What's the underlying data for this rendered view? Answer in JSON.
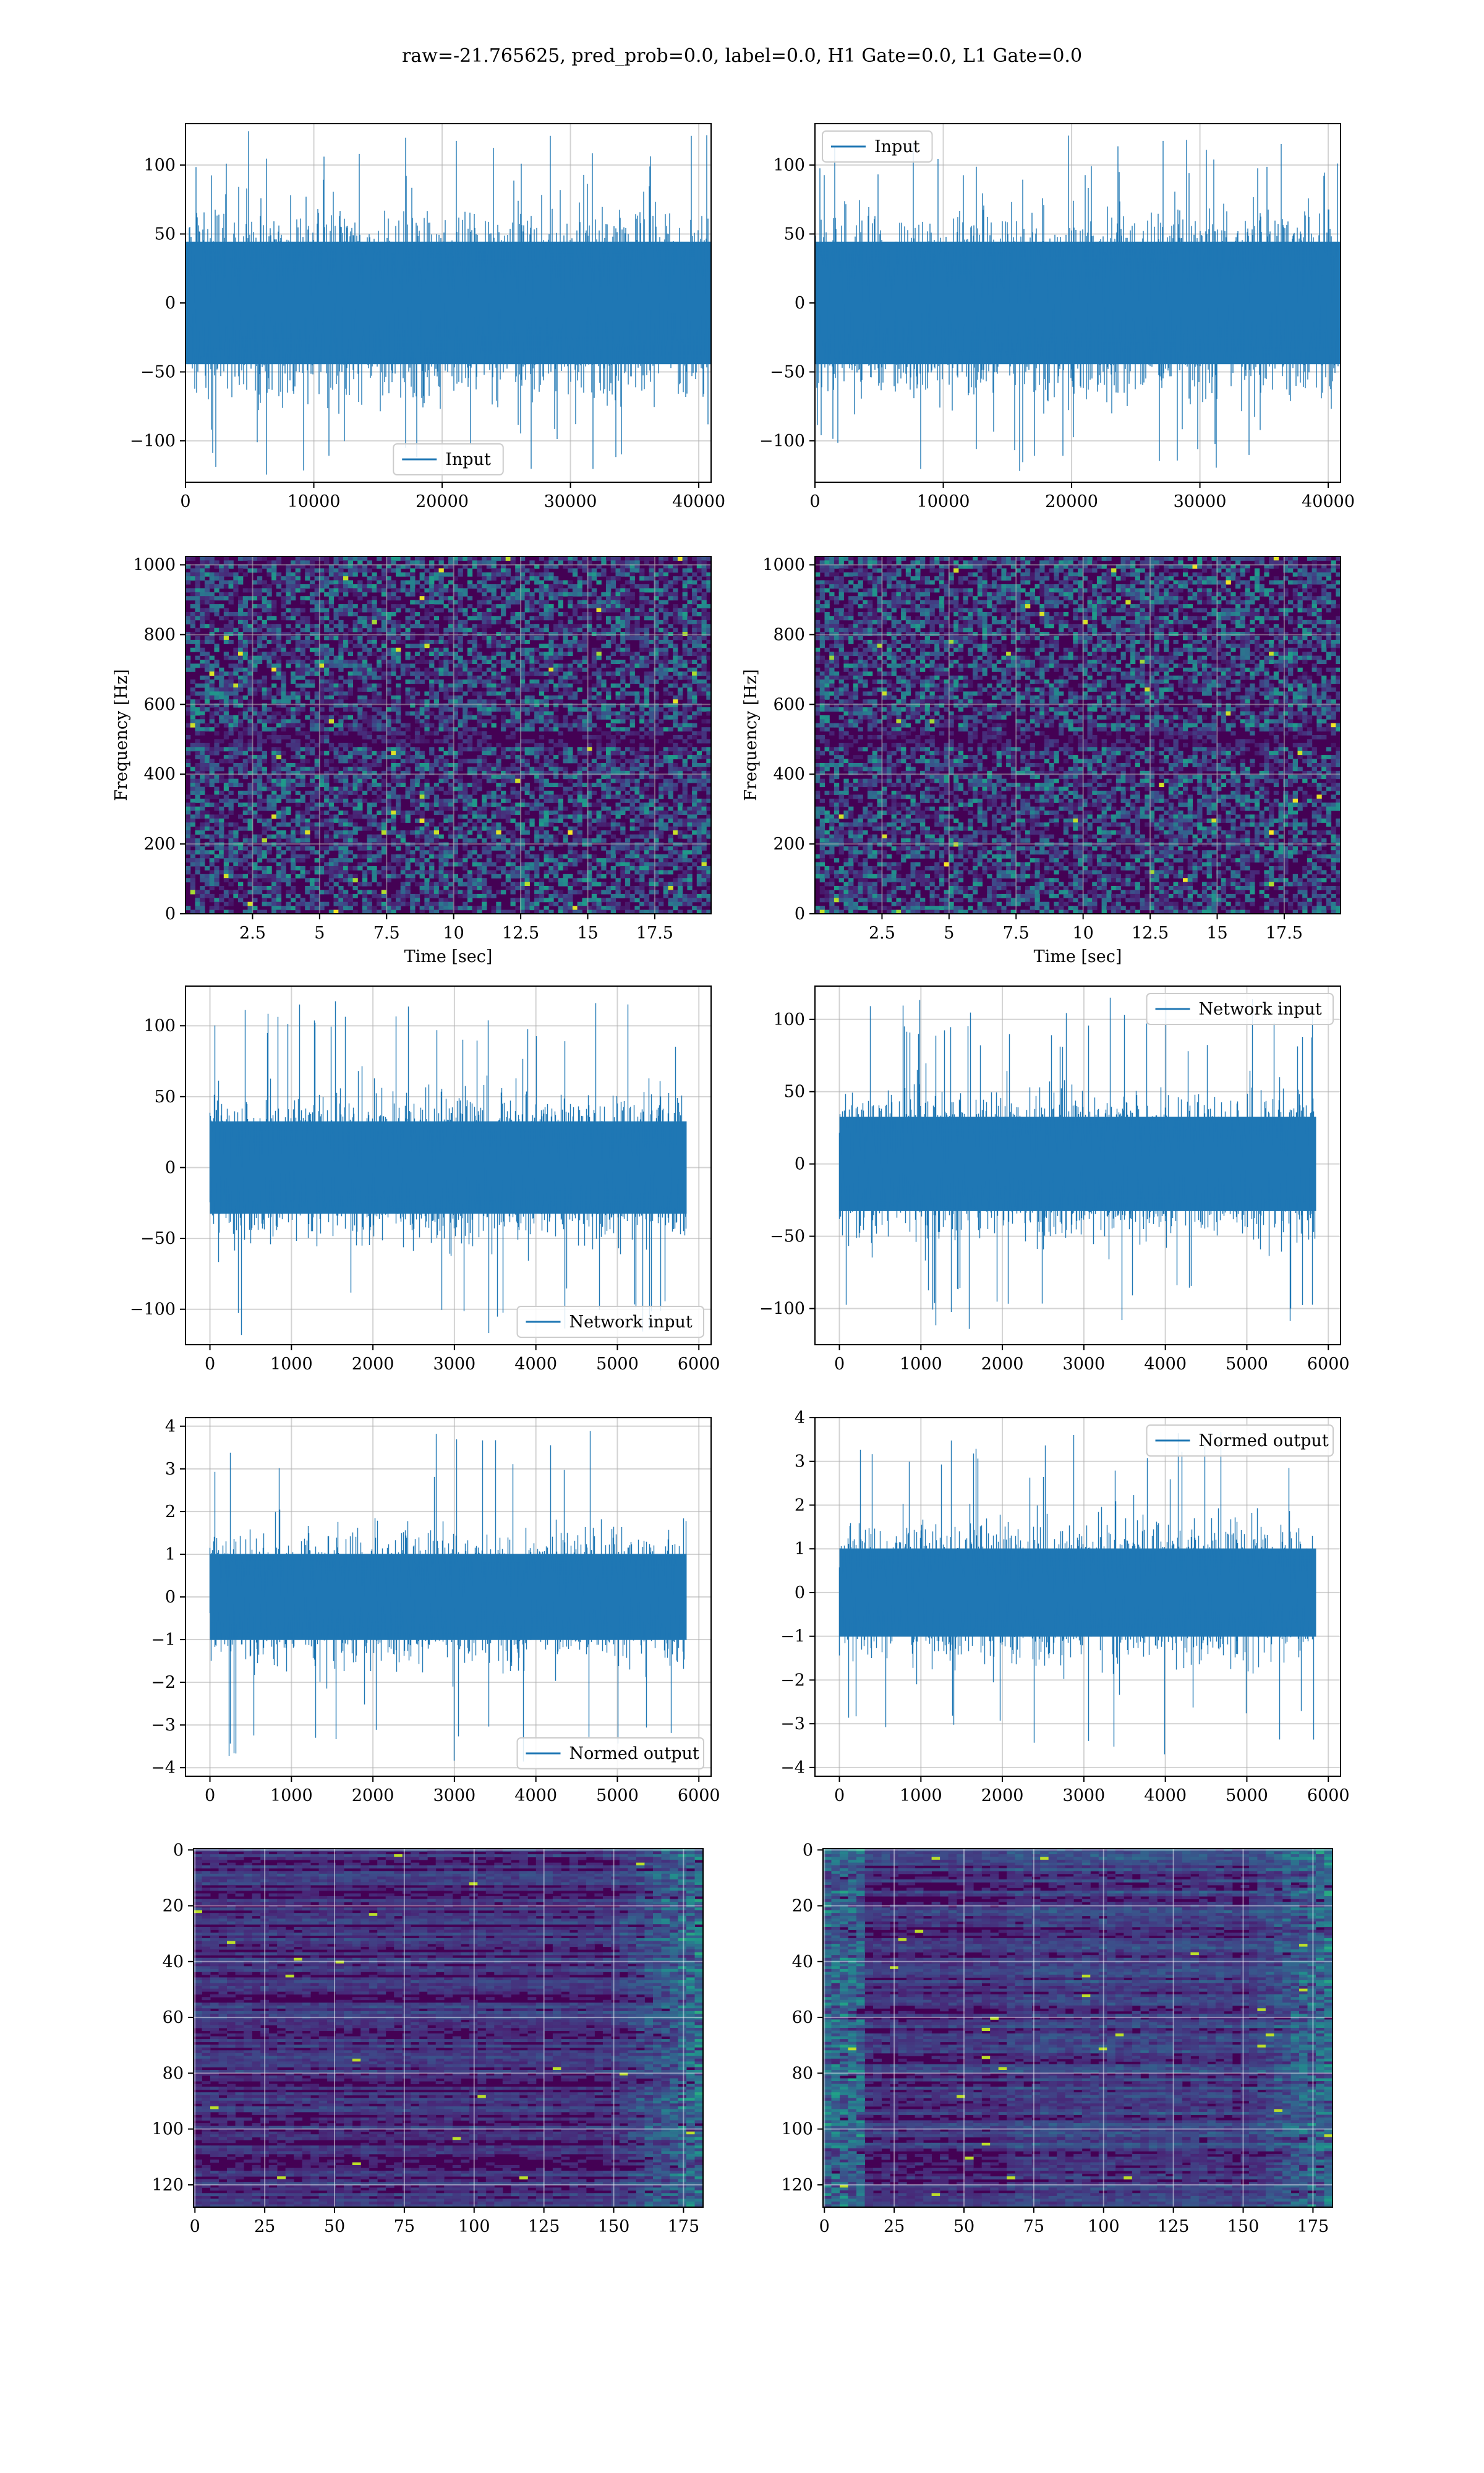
{
  "figure": {
    "title": "raw=-21.765625, pred_prob=0.0, label=0.0, H1 Gate=0.0, L1 Gate=0.0"
  },
  "colors": {
    "series": "#1f77b4",
    "grid": "#b0b0b0",
    "viridis_dark": "#440154",
    "viridis_mid": "#31688e",
    "viridis_green": "#35b779",
    "viridis_yellow": "#fde725"
  },
  "chart_data": [
    {
      "type": "line",
      "panel": "row1-left",
      "series": [
        {
          "name": "Input",
          "x_max": 40960,
          "amplitude_typical": 75,
          "amplitude_peak": 125
        }
      ],
      "xlim": [
        0,
        40960
      ],
      "ylim": [
        -130,
        130
      ],
      "xticks": [
        0,
        10000,
        20000,
        30000,
        40000
      ],
      "yticks": [
        -100,
        -50,
        0,
        50,
        100
      ],
      "xlabel": "",
      "ylabel": "",
      "grid": true,
      "legend": "lower-center"
    },
    {
      "type": "line",
      "panel": "row1-right",
      "series": [
        {
          "name": "Input",
          "x_max": 40960,
          "amplitude_typical": 75,
          "amplitude_peak": 125
        }
      ],
      "xlim": [
        0,
        40960
      ],
      "ylim": [
        -130,
        130
      ],
      "xticks": [
        0,
        10000,
        20000,
        30000,
        40000
      ],
      "yticks": [
        -100,
        -50,
        0,
        50,
        100
      ],
      "xlabel": "",
      "ylabel": "",
      "grid": true,
      "legend": "upper-left"
    },
    {
      "type": "heatmap",
      "panel": "row2-left",
      "xlim": [
        0,
        19.6
      ],
      "ylim": [
        0,
        1024
      ],
      "xticks": [
        2.5,
        5.0,
        7.5,
        10.0,
        12.5,
        15.0,
        17.5
      ],
      "yticks": [
        0,
        200,
        400,
        600,
        800,
        1000
      ],
      "xlabel": "Time [sec]",
      "ylabel": "Frequency [Hz]",
      "grid": true,
      "dark_band_hz": [
        480,
        520
      ]
    },
    {
      "type": "heatmap",
      "panel": "row2-right",
      "xlim": [
        0,
        19.6
      ],
      "ylim": [
        0,
        1024
      ],
      "xticks": [
        2.5,
        5.0,
        7.5,
        10.0,
        12.5,
        15.0,
        17.5
      ],
      "yticks": [
        0,
        200,
        400,
        600,
        800,
        1000
      ],
      "xlabel": "Time [sec]",
      "ylabel": "Frequency [Hz]",
      "grid": true,
      "dark_band_hz": [
        480,
        520
      ]
    },
    {
      "type": "line",
      "panel": "row3-left",
      "series": [
        {
          "name": "Network input",
          "x_max": 5850,
          "amplitude_typical": 55,
          "amplitude_peak": 120
        }
      ],
      "xlim": [
        -300,
        6150
      ],
      "ylim": [
        -125,
        128
      ],
      "xticks": [
        0,
        1000,
        2000,
        3000,
        4000,
        5000,
        6000
      ],
      "yticks": [
        -100,
        -50,
        0,
        50,
        100
      ],
      "xlabel": "",
      "ylabel": "",
      "grid": true,
      "legend": "lower-right"
    },
    {
      "type": "line",
      "panel": "row3-right",
      "series": [
        {
          "name": "Network input",
          "x_max": 5850,
          "amplitude_typical": 55,
          "amplitude_peak": 115
        }
      ],
      "xlim": [
        -300,
        6150
      ],
      "ylim": [
        -125,
        123
      ],
      "xticks": [
        0,
        1000,
        2000,
        3000,
        4000,
        5000,
        6000
      ],
      "yticks": [
        -100,
        -50,
        0,
        50,
        100
      ],
      "xlabel": "",
      "ylabel": "",
      "grid": true,
      "legend": "upper-right"
    },
    {
      "type": "line",
      "panel": "row4-left",
      "series": [
        {
          "name": "Normed output",
          "x_max": 5850,
          "amplitude_typical": 1.7,
          "amplitude_peak": 3.9
        }
      ],
      "xlim": [
        -300,
        6150
      ],
      "ylim": [
        -4.2,
        4.2
      ],
      "xticks": [
        0,
        1000,
        2000,
        3000,
        4000,
        5000,
        6000
      ],
      "yticks": [
        -4,
        -3,
        -2,
        -1,
        0,
        1,
        2,
        3,
        4
      ],
      "xlabel": "",
      "ylabel": "",
      "grid": true,
      "legend": "lower-right"
    },
    {
      "type": "line",
      "panel": "row4-right",
      "series": [
        {
          "name": "Normed output",
          "x_max": 5850,
          "amplitude_typical": 1.7,
          "amplitude_peak": 3.7
        }
      ],
      "xlim": [
        -300,
        6150
      ],
      "ylim": [
        -4.2,
        4.0
      ],
      "xticks": [
        0,
        1000,
        2000,
        3000,
        4000,
        5000,
        6000
      ],
      "yticks": [
        -4,
        -3,
        -2,
        -1,
        0,
        1,
        2,
        3,
        4
      ],
      "xlabel": "",
      "ylabel": "",
      "grid": true,
      "legend": "upper-right"
    },
    {
      "type": "heatmap",
      "panel": "row5-left",
      "xlim": [
        -0.5,
        182
      ],
      "ylim": [
        128,
        -0.5
      ],
      "xticks": [
        0,
        25,
        50,
        75,
        100,
        125,
        150,
        175
      ],
      "yticks": [
        0,
        20,
        40,
        60,
        80,
        100,
        120
      ],
      "xlabel": "",
      "ylabel": "",
      "grid": true,
      "rows": 128,
      "cols": 182,
      "bright_region": "right"
    },
    {
      "type": "heatmap",
      "panel": "row5-right",
      "xlim": [
        -0.5,
        182
      ],
      "ylim": [
        128,
        -0.5
      ],
      "xticks": [
        0,
        25,
        50,
        75,
        100,
        125,
        150,
        175
      ],
      "yticks": [
        0,
        20,
        40,
        60,
        80,
        100,
        120
      ],
      "xlabel": "",
      "ylabel": "",
      "grid": true,
      "rows": 128,
      "cols": 182,
      "bright_region": "left-and-right"
    }
  ]
}
